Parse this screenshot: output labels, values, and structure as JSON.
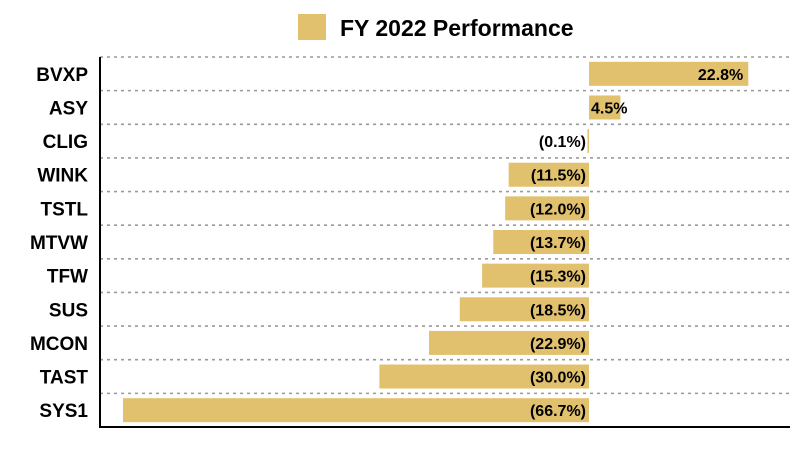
{
  "chart_data": {
    "type": "bar",
    "orientation": "horizontal",
    "categories": [
      "BVXP",
      "ASY",
      "CLIG",
      "WINK",
      "TSTL",
      "MTVW",
      "TFW",
      "SUS",
      "MCON",
      "TAST",
      "SYS1"
    ],
    "series": [
      {
        "name": "FY 2022 Performance",
        "values": [
          22.8,
          4.5,
          -0.1,
          -11.5,
          -12.0,
          -13.7,
          -15.3,
          -18.5,
          -22.9,
          -30.0,
          -66.7
        ],
        "color": "#e1c16e"
      }
    ],
    "data_labels": [
      "22.8%",
      "4.5%",
      "(0.1%)",
      "(11.5%)",
      "(12.0%)",
      "(13.7%)",
      "(15.3%)",
      "(18.5%)",
      "(22.9%)",
      "(30.0%)",
      "(66.7%)"
    ],
    "title": "",
    "xlabel": "",
    "ylabel": "",
    "xlim": [
      -70,
      24
    ],
    "grid": "dashed horizontal separators",
    "legend": "top-center"
  }
}
